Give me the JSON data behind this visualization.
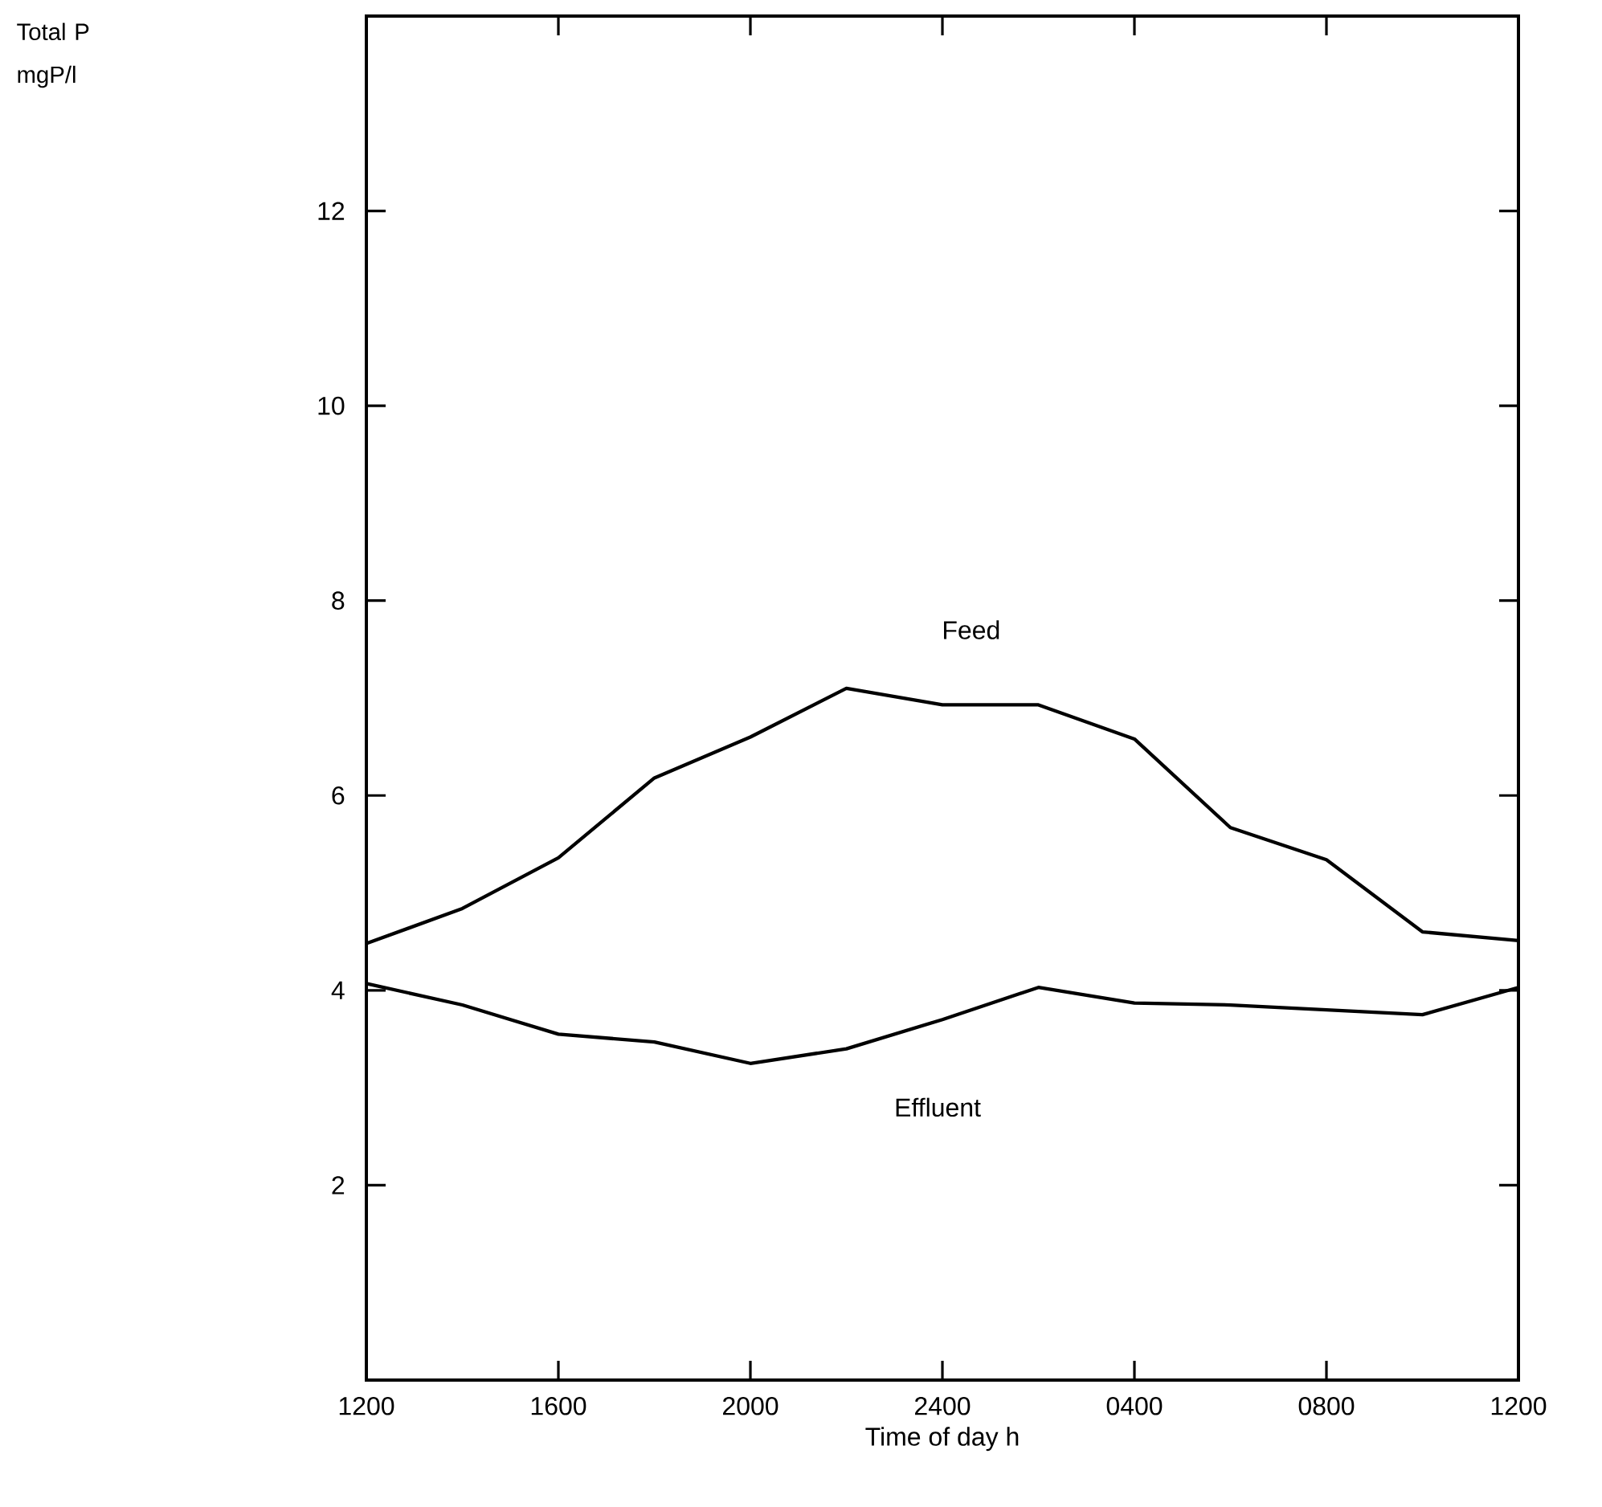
{
  "chart_data": {
    "type": "line",
    "xlabel": "Time of day h",
    "annotations": [
      "Total P mgP/l"
    ],
    "categories": [
      "1200",
      null,
      "1600",
      null,
      "2000",
      null,
      "2400",
      null,
      "0400",
      null,
      "0800",
      null,
      "1200"
    ],
    "series": [
      {
        "name": "Feed",
        "color": "#000000",
        "values": [
          4.48,
          4.84,
          5.36,
          6.18,
          6.6,
          7.1,
          6.93,
          6.93,
          6.58,
          5.67,
          5.34,
          4.6,
          4.51
        ]
      },
      {
        "name": "Effluent",
        "color": "#000000",
        "values": [
          4.07,
          3.85,
          3.55,
          3.47,
          3.25,
          3.4,
          3.7,
          4.03,
          3.87,
          3.85,
          3.8,
          3.75,
          4.03
        ]
      }
    ],
    "ylim": [
      0,
      14
    ],
    "yticks": [
      2,
      4,
      6,
      8,
      10,
      12
    ]
  }
}
